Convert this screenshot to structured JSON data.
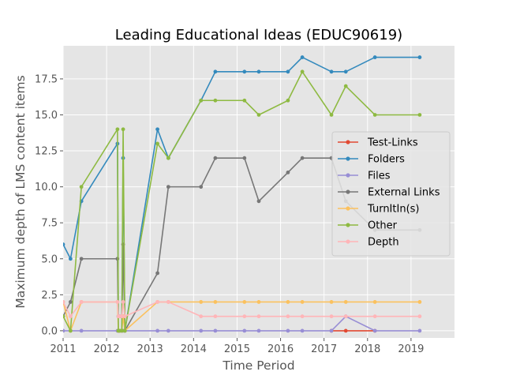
{
  "chart_data": {
    "type": "line",
    "title": "Leading Educational Ideas (EDUC90619)",
    "xlabel": "Time Period",
    "ylabel": "Maximum depth of LMS content items",
    "xlim": [
      2011,
      2020
    ],
    "ylim": [
      -0.5,
      19.8
    ],
    "xticks": [
      2011,
      2012,
      2013,
      2014,
      2015,
      2016,
      2017,
      2018,
      2019
    ],
    "xtick_labels": [
      "2011",
      "2012",
      "2013",
      "2014",
      "2015",
      "2016",
      "2017",
      "2018",
      "2019"
    ],
    "yticks": [
      0,
      2.5,
      5,
      7.5,
      10,
      12.5,
      15,
      17.5
    ],
    "ytick_labels": [
      "0.0",
      "2.5",
      "5.0",
      "7.5",
      "10.0",
      "12.5",
      "15.0",
      "17.5"
    ],
    "grid": true,
    "legend_position": "center-right",
    "x": [
      2011.0,
      2011.17,
      2011.42,
      2012.25,
      2012.27,
      2012.3,
      2012.35,
      2012.38,
      2012.42,
      2013.17,
      2013.42,
      2014.17,
      2014.5,
      2015.17,
      2015.5,
      2016.17,
      2016.5,
      2017.17,
      2017.5,
      2018.17,
      2019.2
    ],
    "series": [
      {
        "name": "Test-Links",
        "color": "#E24A33",
        "values": [
          null,
          null,
          null,
          null,
          null,
          null,
          null,
          null,
          null,
          null,
          null,
          null,
          null,
          null,
          null,
          null,
          null,
          0,
          0,
          0,
          null
        ]
      },
      {
        "name": "Folders",
        "color": "#348ABD",
        "values": [
          6,
          5,
          9,
          13,
          1,
          1,
          1,
          12,
          0,
          14,
          12,
          16,
          18,
          18,
          18,
          18,
          19,
          18,
          18,
          19,
          19
        ]
      },
      {
        "name": "Files",
        "color": "#988ED5",
        "values": [
          0,
          0,
          0,
          0,
          0,
          0,
          0,
          0,
          0,
          0,
          0,
          0,
          0,
          0,
          0,
          0,
          0,
          0,
          1,
          0,
          0
        ]
      },
      {
        "name": "External Links",
        "color": "#777777",
        "values": [
          1,
          2,
          5,
          5,
          0,
          0,
          0,
          6,
          0,
          4,
          10,
          10,
          12,
          12,
          9,
          11,
          12,
          12,
          9,
          7,
          7
        ]
      },
      {
        "name": "TurnItIn(s)",
        "color": "#FBC15E",
        "values": [
          2,
          0,
          2,
          2,
          0,
          0,
          0,
          1,
          0,
          2,
          2,
          2,
          2,
          2,
          2,
          2,
          2,
          2,
          2,
          2,
          2
        ]
      },
      {
        "name": "Other",
        "color": "#8EBA42",
        "values": [
          1,
          0,
          10,
          14,
          0,
          0,
          0,
          14,
          0,
          13,
          12,
          16,
          16,
          16,
          15,
          16,
          18,
          15,
          17,
          15,
          15
        ]
      },
      {
        "name": "Depth",
        "color": "#FFB5B8",
        "values": [
          2,
          1,
          2,
          2,
          1,
          1,
          1,
          2,
          1,
          2,
          2,
          1,
          1,
          1,
          1,
          1,
          1,
          1,
          1,
          1,
          1
        ]
      }
    ]
  }
}
